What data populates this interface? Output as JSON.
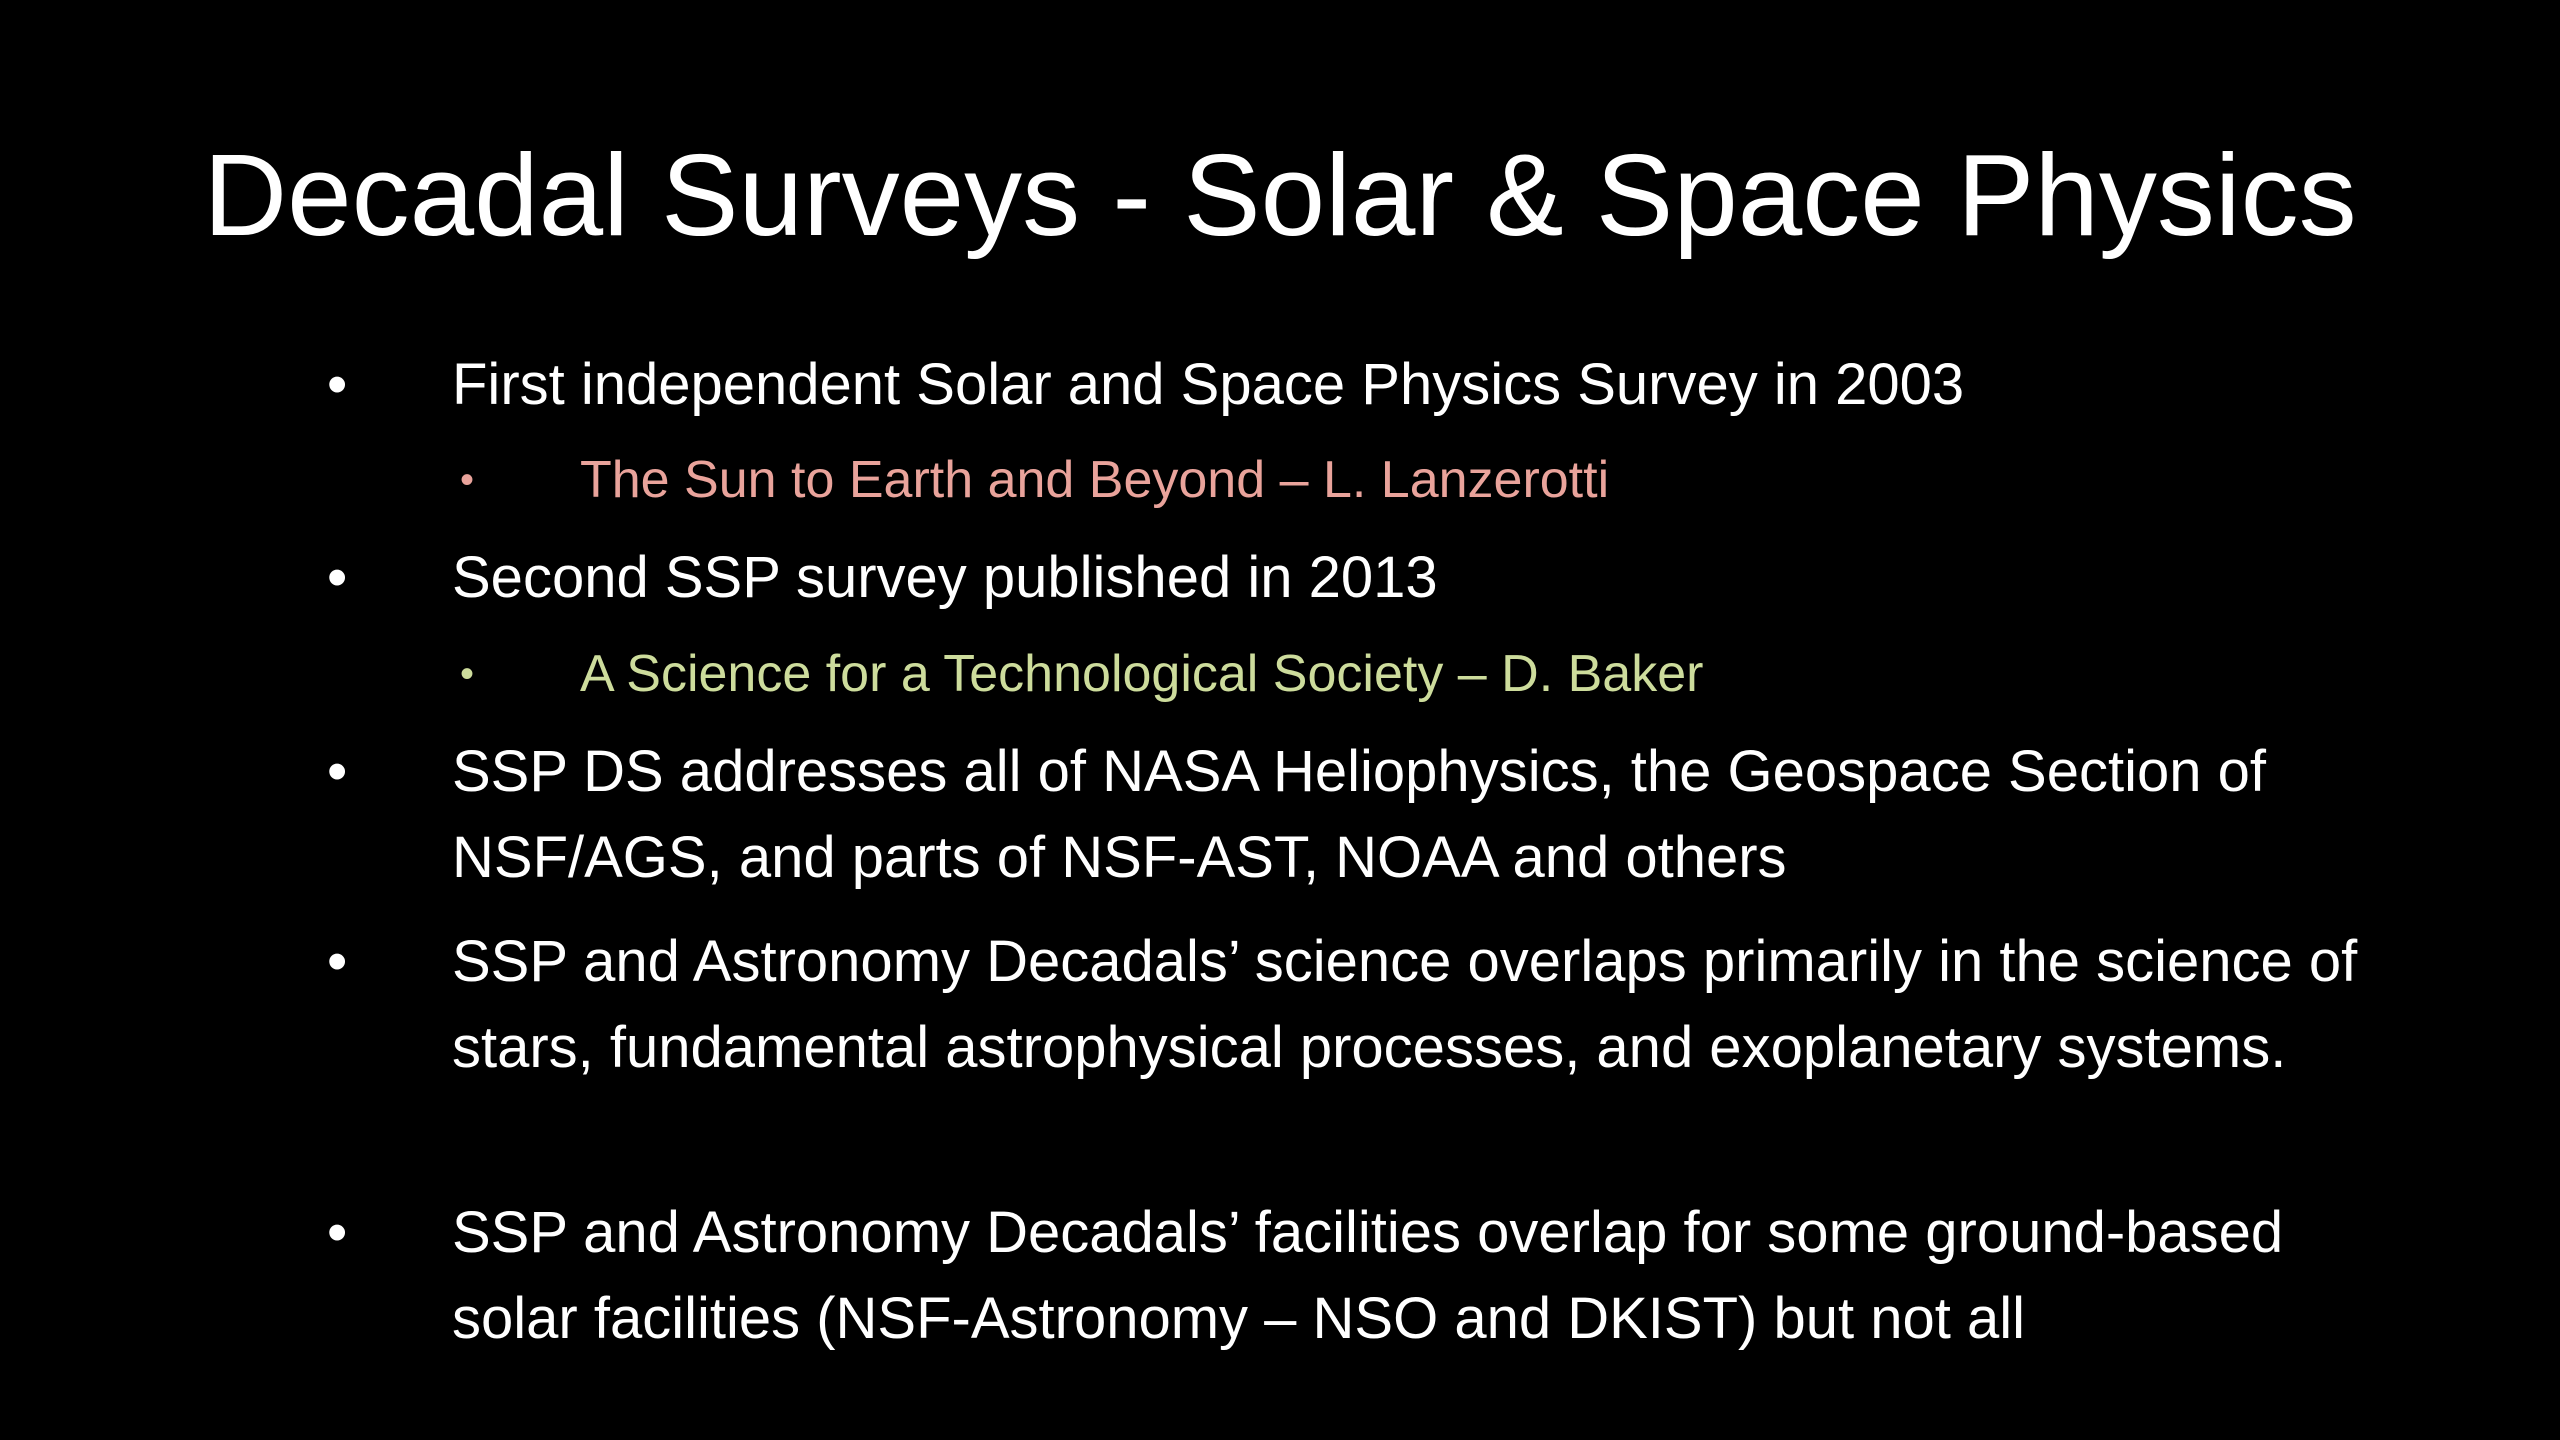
{
  "title": "Decadal Surveys - Solar & Space Physics",
  "bullets": [
    {
      "text": "First independent Solar and Space Physics Survey in 2003",
      "sub": [
        "The Sun to Earth and Beyond – L. Lanzerotti"
      ]
    },
    {
      "text": "Second SSP survey published in 2013",
      "sub": [
        "A Science for a Technological Society – D. Baker"
      ]
    },
    {
      "text": "SSP DS addresses all of NASA Heliophysics, the Geospace Section of NSF/AGS, and parts of NSF-AST, NOAA and others"
    },
    {
      "text": "SSP and Astronomy Decadals’ science overlaps primarily in the science of stars, fundamental astrophysical processes, and exoplanetary systems."
    },
    {
      "text": "SSP and Astronomy Decadals’ facilities overlap for some ground-based solar facilities (NSF-Astronomy – NSO and DKIST) but not all"
    }
  ]
}
